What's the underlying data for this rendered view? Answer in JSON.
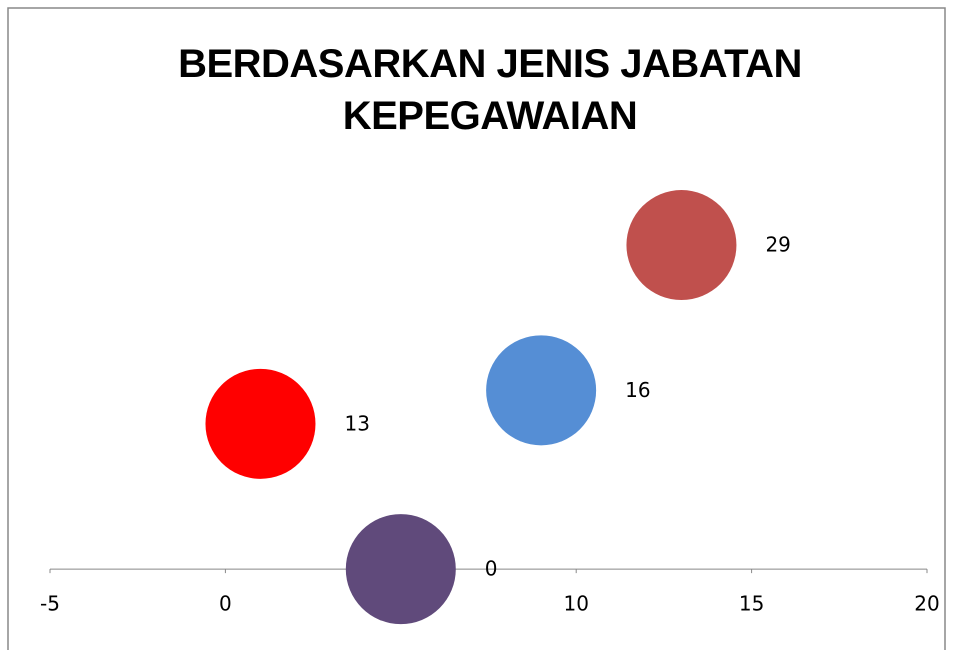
{
  "chart_data": {
    "type": "scatter",
    "title": "BERDASARKAN JENIS JABATAN KEPEGAWAIAN",
    "x": [
      1,
      9,
      13,
      5
    ],
    "values": [
      13,
      16,
      29,
      0
    ],
    "colors": [
      "#ff0000",
      "#558ed5",
      "#c0504d",
      "#604a7b"
    ],
    "xlim": [
      -5,
      20
    ],
    "xticks": [
      -5,
      0,
      5,
      10,
      15,
      20
    ],
    "ylim": [
      -5,
      35
    ],
    "grid": false
  }
}
